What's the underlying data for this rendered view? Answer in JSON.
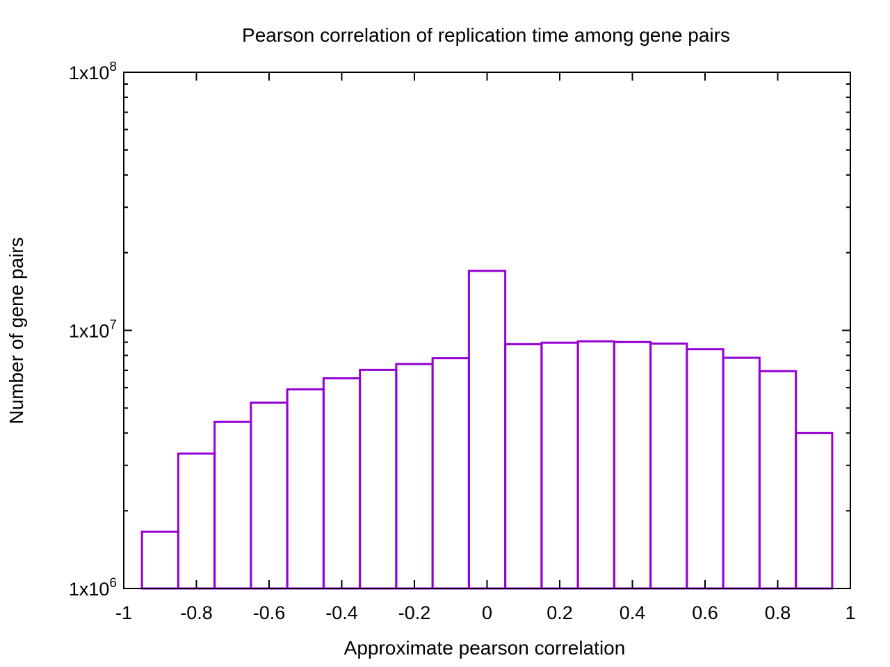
{
  "chart_data": {
    "type": "bar",
    "title": "Pearson correlation of replication time among gene pairs",
    "xlabel": "Approximate pearson correlation",
    "ylabel": "Number of gene pairs",
    "xlim": [
      -1,
      1
    ],
    "ylim": [
      1000000,
      100000000
    ],
    "yscale": "log",
    "grid": false,
    "legend": "none",
    "bar_width": 0.1,
    "bar_color": "#9400d3",
    "x_ticks": [
      {
        "value": -1,
        "label": "-1"
      },
      {
        "value": -0.8,
        "label": "-0.8"
      },
      {
        "value": -0.6,
        "label": "-0.6"
      },
      {
        "value": -0.4,
        "label": "-0.4"
      },
      {
        "value": -0.2,
        "label": "-0.2"
      },
      {
        "value": 0,
        "label": "0"
      },
      {
        "value": 0.2,
        "label": "0.2"
      },
      {
        "value": 0.4,
        "label": "0.4"
      },
      {
        "value": 0.6,
        "label": "0.6"
      },
      {
        "value": 0.8,
        "label": "0.8"
      },
      {
        "value": 1,
        "label": "1"
      }
    ],
    "y_ticks": [
      {
        "value": 1000000,
        "base": "1x10",
        "exp": "6"
      },
      {
        "value": 10000000,
        "base": "1x10",
        "exp": "7"
      },
      {
        "value": 100000000,
        "base": "1x10",
        "exp": "8"
      }
    ],
    "bins": [
      -0.9,
      -0.8,
      -0.7,
      -0.6,
      -0.5,
      -0.4,
      -0.3,
      -0.2,
      -0.1,
      0,
      0.1,
      0.2,
      0.3,
      0.4,
      0.5,
      0.6,
      0.7,
      0.8,
      0.9
    ],
    "values": [
      1660000,
      3330000,
      4420000,
      5250000,
      5910000,
      6520000,
      7030000,
      7410000,
      7800000,
      17000000,
      8840000,
      8960000,
      9070000,
      9010000,
      8890000,
      8450000,
      7830000,
      6950000,
      4000000
    ]
  }
}
